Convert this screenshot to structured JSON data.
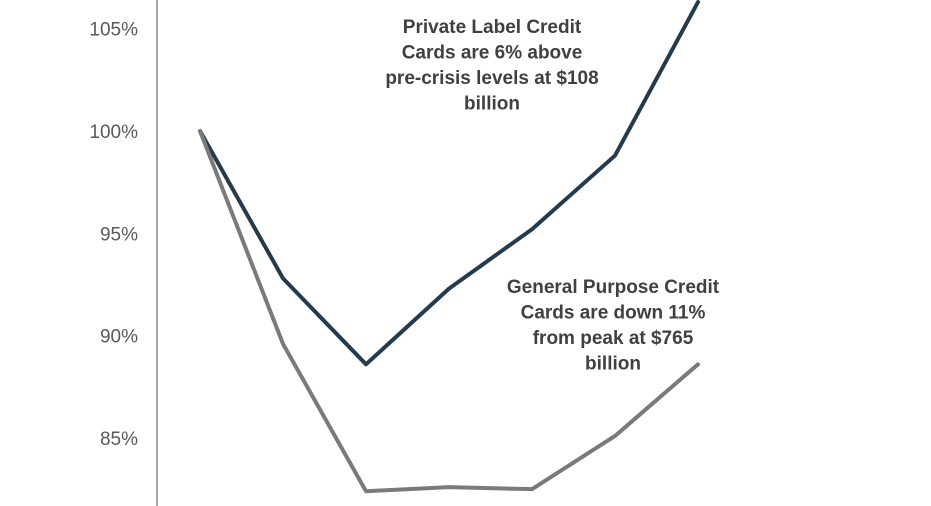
{
  "chart_data": {
    "type": "line",
    "x": [
      0,
      1,
      2,
      3,
      4,
      5,
      6
    ],
    "ylim": [
      82,
      107
    ],
    "yticks": [
      85,
      90,
      95,
      100,
      105
    ],
    "ytick_labels": [
      "85%",
      "90%",
      "95%",
      "100%",
      "105%"
    ],
    "grid": false,
    "series": [
      {
        "key": "private_label",
        "color": "#243b4e",
        "values": [
          100,
          92.8,
          88.6,
          92.3,
          95.2,
          98.8,
          106.3
        ]
      },
      {
        "key": "general_purpose",
        "color": "#7a7a7a",
        "values": [
          100,
          89.6,
          82.4,
          82.6,
          82.5,
          85.1,
          88.6
        ]
      }
    ],
    "annotations": [
      {
        "key": "private_label_note",
        "lines": [
          "Private Label Credit",
          "Cards are 6% above",
          "pre-crisis levels at $108",
          "billion"
        ]
      },
      {
        "key": "general_purpose_note",
        "lines": [
          "General Purpose Credit",
          "Cards are down 11%",
          "from peak at $765",
          "billion"
        ]
      }
    ]
  }
}
